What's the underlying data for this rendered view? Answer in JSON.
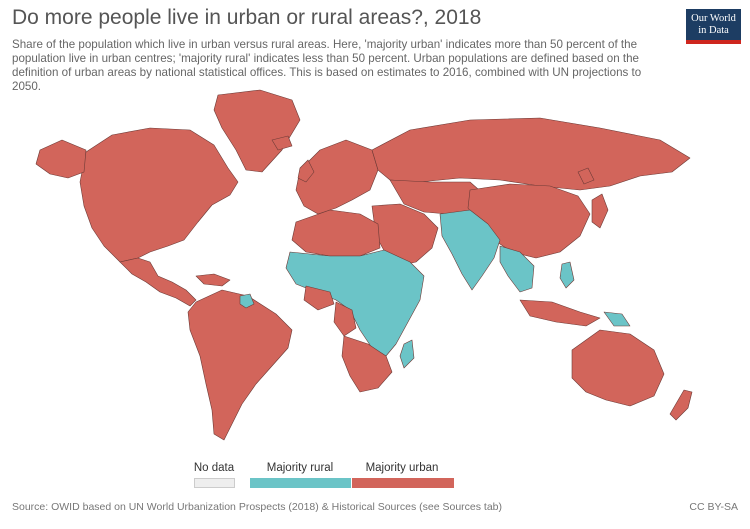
{
  "header": {
    "title": "Do more people live in urban or rural areas?, 2018",
    "subtitle": "Share of the population which live in urban versus rural areas. Here, 'majority urban' indicates more than 50 percent of the population live in urban centres; 'majority rural' indicates less than 50 percent. Urban populations are defined based on the definition of urban areas by national statistical offices. This is based on estimates to 2016, combined with UN projections to 2050."
  },
  "logo": {
    "line1": "Our World",
    "line2": "in Data"
  },
  "legend": {
    "items": [
      {
        "label": "No data",
        "color": "#eeeeee"
      },
      {
        "label": "Majority rural",
        "color": "#6bc4c7"
      },
      {
        "label": "Majority urban",
        "color": "#d2655b"
      }
    ]
  },
  "colors": {
    "urban": "#d2655b",
    "rural": "#6bc4c7",
    "border": "#6d3a36"
  },
  "footer": {
    "source": "Source: OWID based on UN World Urbanization Prospects (2018) & Historical Sources (see Sources tab)",
    "license": "CC BY-SA"
  }
}
